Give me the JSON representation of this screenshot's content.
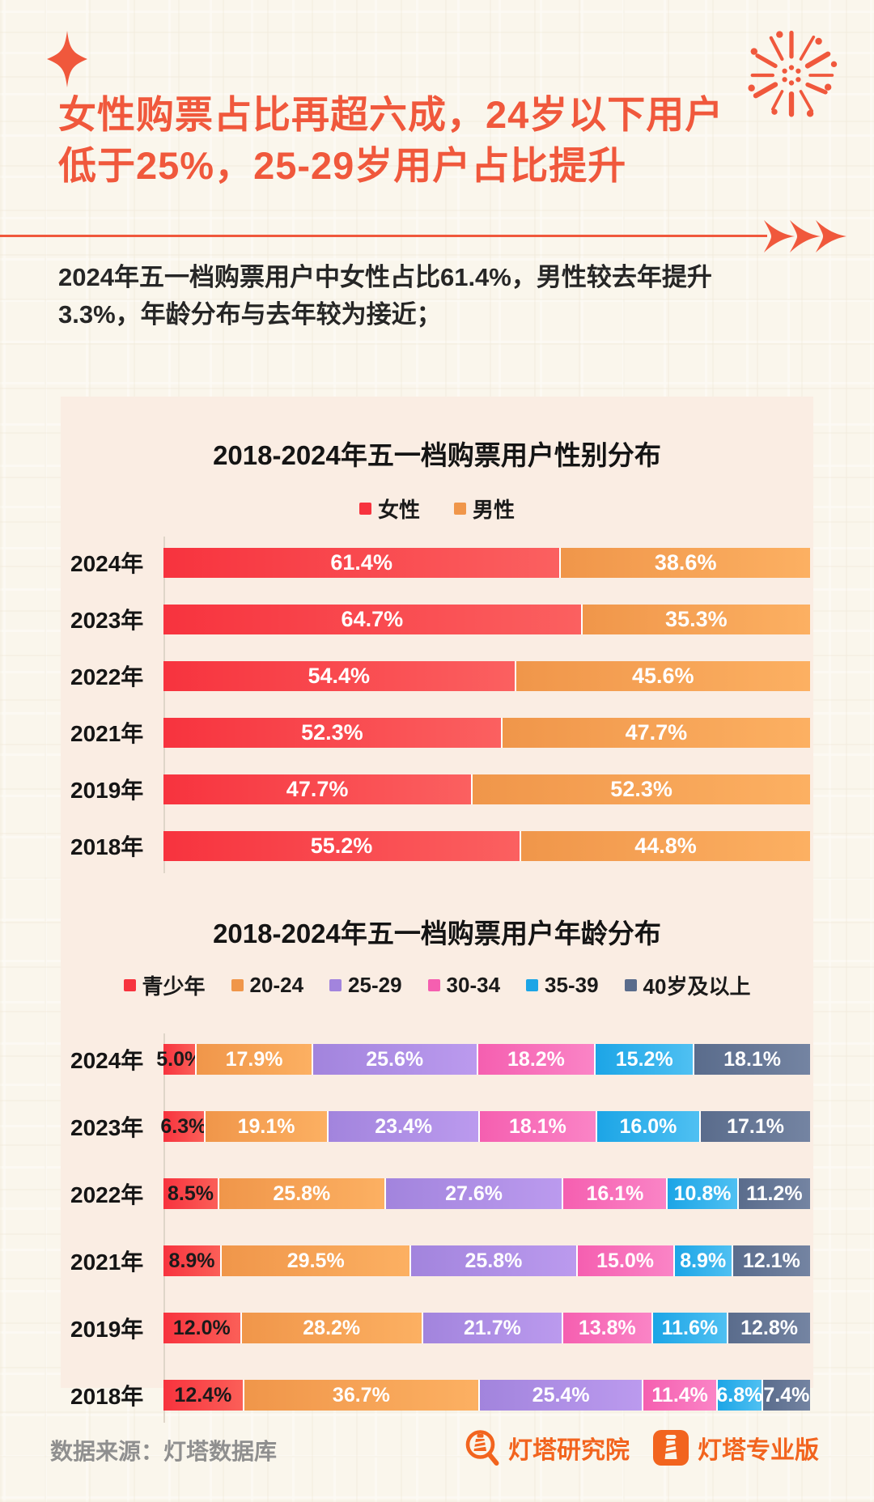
{
  "header": {
    "title_lines": [
      "女性购票占比再超六成，24岁以下用户",
      "低于25%，25-29岁用户占比提升"
    ],
    "subtitle_lines": [
      "2024年五一档购票用户中女性占比61.4%，男性较去年提升",
      "3.3%，年龄分布与去年较为接近；"
    ]
  },
  "colors": {
    "accent": "#F0583C",
    "card_background": "#FAEDE3",
    "page_background": "#FAF6EC",
    "logo_orange": "#F2641E"
  },
  "chart_data": [
    {
      "type": "bar",
      "stacked": true,
      "orientation": "horizontal",
      "title": "2018-2024年五一档购票用户性别分布",
      "value_suffix": "%",
      "legend_position": "top",
      "categories": [
        "2024年",
        "2023年",
        "2022年",
        "2021年",
        "2019年",
        "2018年"
      ],
      "series": [
        {
          "name": "女性",
          "color": "#F7333E",
          "color2": "#FB6060",
          "values": [
            61.4,
            64.7,
            54.4,
            52.3,
            47.7,
            55.2
          ]
        },
        {
          "name": "男性",
          "color": "#F0964A",
          "color2": "#FCB062",
          "values": [
            38.6,
            35.3,
            45.6,
            47.7,
            52.3,
            44.8
          ]
        }
      ]
    },
    {
      "type": "bar",
      "stacked": true,
      "orientation": "horizontal",
      "title": "2018-2024年五一档购票用户年龄分布",
      "value_suffix": "%",
      "legend_position": "top",
      "categories": [
        "2024年",
        "2023年",
        "2022年",
        "2021年",
        "2019年",
        "2018年"
      ],
      "series": [
        {
          "name": "青少年",
          "color": "#F7333E",
          "color2": "#FB5F58",
          "label_color": "#1A1A1A",
          "values": [
            5.0,
            6.3,
            8.5,
            8.9,
            12.0,
            12.4
          ]
        },
        {
          "name": "20-24",
          "color": "#F0964A",
          "color2": "#FCB062",
          "values": [
            17.9,
            19.1,
            25.8,
            29.5,
            28.2,
            36.7
          ]
        },
        {
          "name": "25-29",
          "color": "#A284DD",
          "color2": "#BB9AEE",
          "values": [
            25.6,
            23.4,
            27.6,
            25.8,
            21.7,
            25.4
          ]
        },
        {
          "name": "30-34",
          "color": "#F55FB0",
          "color2": "#FA84C6",
          "values": [
            18.2,
            18.1,
            16.1,
            15.0,
            13.8,
            11.4
          ]
        },
        {
          "name": "35-39",
          "color": "#1CA5E6",
          "color2": "#4FC0F2",
          "values": [
            15.2,
            16.0,
            10.8,
            8.9,
            11.6,
            6.8
          ]
        },
        {
          "name": "40岁及以上",
          "color": "#5A6C8C",
          "color2": "#7484A2",
          "values": [
            18.1,
            17.1,
            11.2,
            12.1,
            12.8,
            7.4
          ]
        }
      ]
    }
  ],
  "footer": {
    "source": "数据来源：灯塔数据库",
    "brands": [
      {
        "name": "灯塔研究院"
      },
      {
        "name": "灯塔专业版"
      }
    ]
  }
}
